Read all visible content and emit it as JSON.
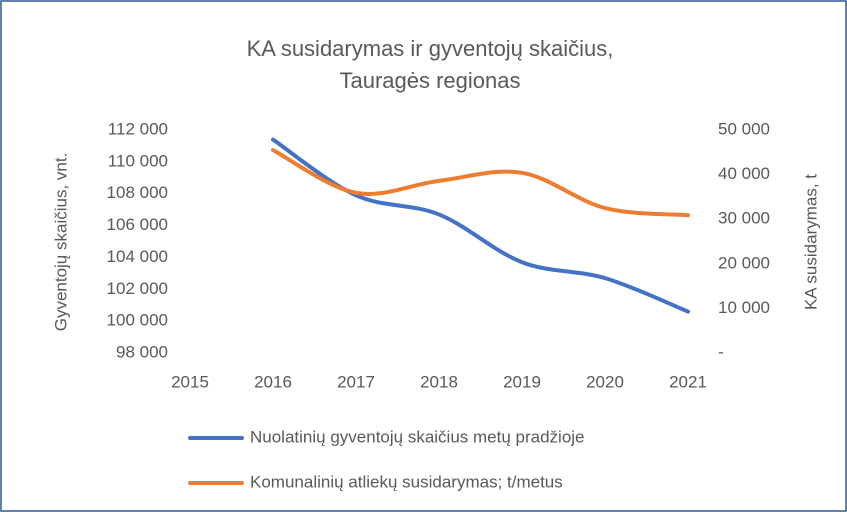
{
  "chart_data": {
    "type": "line",
    "title": [
      "KA susidarymas ir gyventojų skaičius,",
      "Tauragės regionas"
    ],
    "y_label": "Gyventojų skaičius, vnt.",
    "y2_label": "KA susidarymas, t",
    "x": [
      2016,
      2017,
      2018,
      2019,
      2020,
      2021
    ],
    "xlim": [
      2015,
      2021
    ],
    "xticks": [
      2015,
      2016,
      2017,
      2018,
      2019,
      2020,
      2021
    ],
    "ylim": [
      98000,
      112000
    ],
    "yticks": [
      {
        "value": 98000,
        "label": "98 000"
      },
      {
        "value": 100000,
        "label": "100 000"
      },
      {
        "value": 102000,
        "label": "102 000"
      },
      {
        "value": 104000,
        "label": "104 000"
      },
      {
        "value": 106000,
        "label": "106 000"
      },
      {
        "value": 108000,
        "label": "108 000"
      },
      {
        "value": 110000,
        "label": "110 000"
      },
      {
        "value": 112000,
        "label": "112 000"
      }
    ],
    "y2lim": [
      0,
      50000
    ],
    "y2ticks": [
      {
        "value": 0,
        "label": "-"
      },
      {
        "value": 10000,
        "label": "10 000"
      },
      {
        "value": 20000,
        "label": "20 000"
      },
      {
        "value": 30000,
        "label": "30 000"
      },
      {
        "value": 40000,
        "label": "40 000"
      },
      {
        "value": 50000,
        "label": "50 000"
      }
    ],
    "smooth": true,
    "legend": "bottom",
    "series": [
      {
        "name": "Nuolatinių gyventojų skaičius metų pradžioje",
        "color": "#4472c4",
        "values": [
          111400,
          107900,
          106700,
          103700,
          102700,
          100600
        ]
      },
      {
        "name": "Komunalinių atliekų susidarymas; t/metus",
        "color": "#ed7d31",
        "axis": "y2",
        "values": [
          45500,
          35900,
          38600,
          40400,
          32500,
          30900
        ]
      }
    ]
  }
}
